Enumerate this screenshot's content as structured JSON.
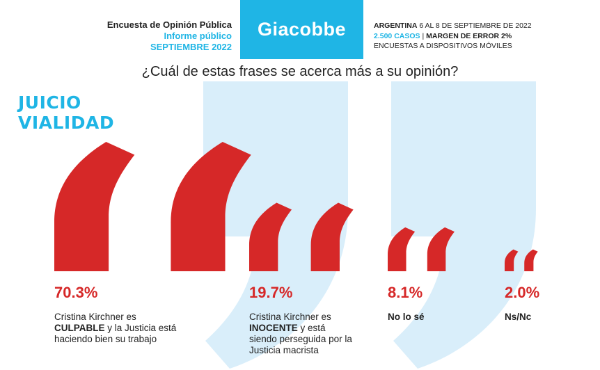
{
  "header": {
    "line1": "Encuesta de Opinión Pública",
    "line2": "Informe público",
    "line3": "SEPTIEMBRE 2022",
    "brand": "Giacobbe",
    "info_country": "ARGENTINA",
    "info_dates": " 6 AL 8 DE SEPTIEMBRE DE 2022",
    "info_cases": "2.500 CASOS",
    "info_sep": " | ",
    "info_margin": "MARGEN DE ERROR 2%",
    "info_method": "ENCUESTAS A DISPOSITIVOS MÓVILES"
  },
  "question": "¿Cuál de estas frases se acerca más a su opinión?",
  "section": {
    "line1": "JUICIO",
    "line2": "VIALIDAD"
  },
  "colors": {
    "accent_red": "#d62828",
    "brand_cyan": "#1fb5e5",
    "quote_bg": "#d9eefa"
  },
  "icons": {
    "background": "closing-quote-icon",
    "marker": "opening-quote-icon"
  },
  "chart_data": {
    "type": "bar",
    "encoding": "quote mark size proportional to value",
    "unit": "%",
    "categories": [
      "Cristina Kirchner es CULPABLE y la Justicia está haciendo bien su trabajo",
      "Cristina Kirchner es INOCENTE y está siendo perseguida por la Justicia macrista",
      "No lo sé",
      "Ns/Nc"
    ],
    "values": [
      70.3,
      19.7,
      8.1,
      2.0
    ],
    "labels": [
      "70.3%",
      "19.7%",
      "8.1%",
      "2.0%"
    ]
  },
  "items": [
    {
      "pct": "70.3%",
      "desc_pre": "Cristina Kirchner es ",
      "desc_bold": "CULPABLE",
      "desc_post": " y la Justicia está haciendo bien su trabajo"
    },
    {
      "pct": "19.7%",
      "desc_pre": "Cristina Kirchner es ",
      "desc_bold": "INOCENTE",
      "desc_post": " y está siendo perseguida por la Justicia macrista"
    },
    {
      "pct": "8.1%",
      "label": "No lo sé"
    },
    {
      "pct": "2.0%",
      "label": "Ns/Nc"
    }
  ]
}
